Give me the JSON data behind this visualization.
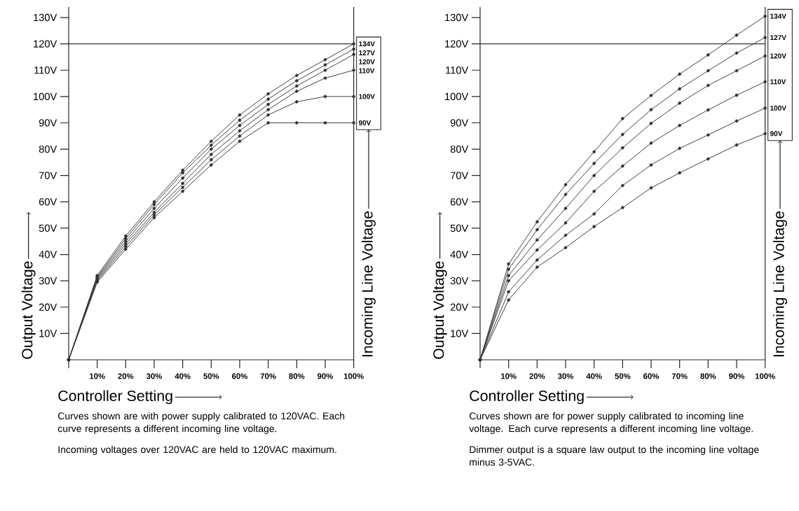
{
  "chart_data": [
    {
      "type": "line",
      "xlabel": "Controller Setting",
      "ylabel": "Output Voltage",
      "y2label": "Incoming Line Voltage",
      "marker": "circle",
      "line_style": "solid",
      "legend": "right",
      "x": [
        0,
        10,
        20,
        30,
        40,
        50,
        60,
        70,
        80,
        90,
        100
      ],
      "series": [
        {
          "name": "134V",
          "color": "#333333",
          "values": [
            0,
            32,
            47,
            60,
            72,
            83,
            93,
            101,
            108,
            114,
            120
          ]
        },
        {
          "name": "127V",
          "color": "#333333",
          "values": [
            0,
            31.5,
            46,
            59,
            71,
            81.5,
            91,
            99,
            106,
            112,
            118
          ]
        },
        {
          "name": "120V",
          "color": "#333333",
          "values": [
            0,
            31,
            45,
            57.5,
            69,
            80,
            89,
            97,
            104,
            110,
            116
          ]
        },
        {
          "name": "110V",
          "color": "#333333",
          "values": [
            0,
            30.5,
            44,
            56,
            67,
            78,
            87,
            95,
            102,
            107,
            110
          ]
        },
        {
          "name": "100V",
          "color": "#333333",
          "values": [
            0,
            30,
            43,
            55,
            65.5,
            76,
            85,
            93,
            98,
            100,
            100
          ]
        },
        {
          "name": "90V",
          "color": "#333333",
          "values": [
            0,
            29.5,
            42,
            54,
            64,
            74,
            83,
            90,
            90,
            90,
            90
          ]
        }
      ],
      "xlim": [
        0,
        100
      ],
      "ylim": [
        0,
        134
      ],
      "xticks": [
        {
          "value": 0,
          "label": null
        },
        {
          "value": 10,
          "label": "10%"
        },
        {
          "value": 20,
          "label": "20%"
        },
        {
          "value": 30,
          "label": "30%"
        },
        {
          "value": 40,
          "label": "40%"
        },
        {
          "value": 50,
          "label": "50%"
        },
        {
          "value": 60,
          "label": "60%"
        },
        {
          "value": 70,
          "label": "70%"
        },
        {
          "value": 80,
          "label": "80%"
        },
        {
          "value": 90,
          "label": "90%"
        },
        {
          "value": 100,
          "label": "100%"
        }
      ],
      "yticks": [
        {
          "value": 10,
          "label": "10V"
        },
        {
          "value": 20,
          "label": "20V"
        },
        {
          "value": 30,
          "label": "30V"
        },
        {
          "value": 40,
          "label": "40V"
        },
        {
          "value": 50,
          "label": "50V"
        },
        {
          "value": 60,
          "label": "60V"
        },
        {
          "value": 70,
          "label": "70V"
        },
        {
          "value": 80,
          "label": "80V"
        },
        {
          "value": 90,
          "label": "90V"
        },
        {
          "value": 100,
          "label": "100V"
        },
        {
          "value": 110,
          "label": "110V"
        },
        {
          "value": 120,
          "label": "120V"
        },
        {
          "value": 130,
          "label": "130V"
        }
      ],
      "ref_lines": [
        {
          "axis": "y",
          "value": 120,
          "color": "#333333"
        }
      ],
      "annotations": [
        "Curves shown are with power supply calibrated to 120VAC.  Each curve represents a different incoming line voltage.",
        "Incoming voltages over 120VAC are held to 120VAC maximum."
      ]
    },
    {
      "type": "line",
      "xlabel": "Controller Setting",
      "ylabel": "Output Voltage",
      "y2label": "Incoming Line Voltage",
      "marker": "circle",
      "line_style": "solid",
      "legend": "right",
      "x": [
        0,
        10,
        20,
        30,
        40,
        50,
        60,
        70,
        80,
        90,
        100
      ],
      "series": [
        {
          "name": "134V",
          "color": "#333333",
          "values": [
            0,
            36.4,
            52.4,
            66.5,
            79,
            91.6,
            100.4,
            108.5,
            115.8,
            123.3,
            130.5
          ]
        },
        {
          "name": "127V",
          "color": "#333333",
          "values": [
            0,
            34.4,
            49.4,
            62.8,
            74.6,
            85.6,
            95,
            102.9,
            109.8,
            116.5,
            122.4
          ]
        },
        {
          "name": "120V",
          "color": "#333333",
          "values": [
            0,
            32,
            45.5,
            57.5,
            70,
            80.5,
            89.8,
            97.5,
            104.2,
            109.8,
            115.4
          ]
        },
        {
          "name": "110V",
          "color": "#333333",
          "values": [
            0,
            30,
            41.7,
            52,
            64,
            73.6,
            82.3,
            89,
            94.9,
            100.5,
            105.6
          ]
        },
        {
          "name": "100V",
          "color": "#333333",
          "values": [
            0,
            25.8,
            37.9,
            47.3,
            55.4,
            66.2,
            74,
            80.3,
            85.4,
            90.7,
            95.6
          ]
        },
        {
          "name": "90V",
          "color": "#333333",
          "values": [
            0,
            22.7,
            35.2,
            42.6,
            50.6,
            57.8,
            65.3,
            71,
            76.3,
            81.6,
            85.9
          ]
        }
      ],
      "xlim": [
        0,
        100
      ],
      "ylim": [
        0,
        134
      ],
      "xticks": [
        {
          "value": 0,
          "label": null
        },
        {
          "value": 10,
          "label": "10%"
        },
        {
          "value": 20,
          "label": "20%"
        },
        {
          "value": 30,
          "label": "30%"
        },
        {
          "value": 40,
          "label": "40%"
        },
        {
          "value": 50,
          "label": "50%"
        },
        {
          "value": 60,
          "label": "60%"
        },
        {
          "value": 70,
          "label": "70%"
        },
        {
          "value": 80,
          "label": "80%"
        },
        {
          "value": 90,
          "label": "90%"
        },
        {
          "value": 100,
          "label": "100%"
        }
      ],
      "yticks": [
        {
          "value": 10,
          "label": "10V"
        },
        {
          "value": 20,
          "label": "20V"
        },
        {
          "value": 30,
          "label": "30V"
        },
        {
          "value": 40,
          "label": "40V"
        },
        {
          "value": 50,
          "label": "50V"
        },
        {
          "value": 60,
          "label": "60V"
        },
        {
          "value": 70,
          "label": "70V"
        },
        {
          "value": 80,
          "label": "80V"
        },
        {
          "value": 90,
          "label": "90V"
        },
        {
          "value": 100,
          "label": "100V"
        },
        {
          "value": 110,
          "label": "110V"
        },
        {
          "value": 120,
          "label": "120V"
        },
        {
          "value": 130,
          "label": "130V"
        }
      ],
      "ref_lines": [
        {
          "axis": "y",
          "value": 120,
          "color": "#333333"
        }
      ],
      "annotations": [
        "Curves shown are for power supply calibrated to incoming line voltage. Each curve represents a different incoming line voltage.",
        "Dimmer output is a square law output to the incoming line voltage minus 3-5VAC."
      ]
    }
  ]
}
